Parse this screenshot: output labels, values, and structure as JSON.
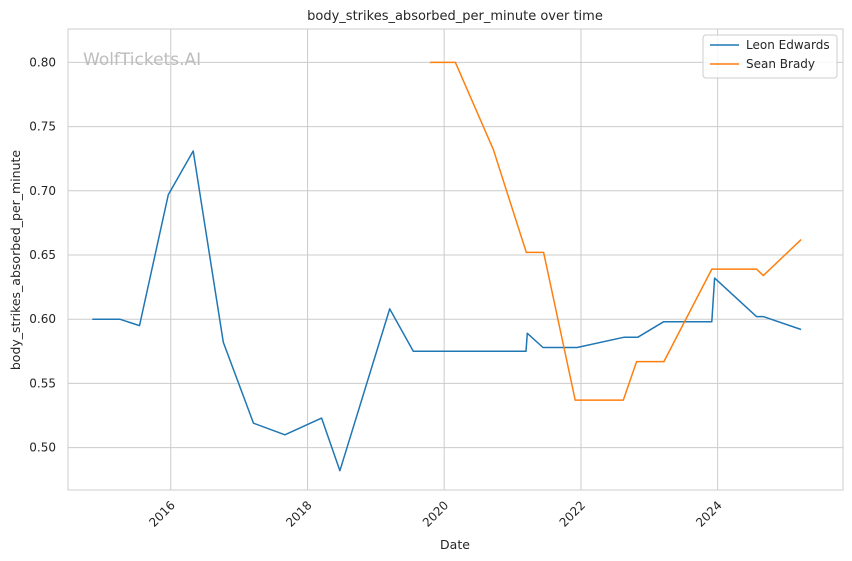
{
  "watermark": "WolfTickets.AI",
  "chart_data": {
    "type": "line",
    "title": "body_strikes_absorbed_per_minute over time",
    "xlabel": "Date",
    "ylabel": "body_strikes_absorbed_per_minute",
    "x_ticks": [
      "2016",
      "2018",
      "2020",
      "2022",
      "2024"
    ],
    "y_ticks": [
      "0.50",
      "0.55",
      "0.60",
      "0.65",
      "0.70",
      "0.75",
      "0.80"
    ],
    "xlim": [
      "2014-07-01",
      "2025-11-01"
    ],
    "ylim": [
      0.467,
      0.826
    ],
    "grid": true,
    "legend_position": "top-right",
    "series": [
      {
        "name": "Leon Edwards",
        "color": "#1f77b4",
        "points": [
          [
            "2014-11-08",
            0.6
          ],
          [
            "2015-04-04",
            0.6
          ],
          [
            "2015-07-18",
            0.595
          ],
          [
            "2015-12-19",
            0.697
          ],
          [
            "2016-04-30",
            0.731
          ],
          [
            "2016-10-08",
            0.582
          ],
          [
            "2017-03-18",
            0.519
          ],
          [
            "2017-09-02",
            0.51
          ],
          [
            "2018-03-17",
            0.523
          ],
          [
            "2018-06-23",
            0.482
          ],
          [
            "2019-03-16",
            0.608
          ],
          [
            "2019-07-20",
            0.575
          ],
          [
            "2021-03-13",
            0.575
          ],
          [
            "2021-03-20",
            0.589
          ],
          [
            "2021-06-12",
            0.578
          ],
          [
            "2021-12-11",
            0.578
          ],
          [
            "2022-08-20",
            0.586
          ],
          [
            "2022-11-01",
            0.586
          ],
          [
            "2023-03-18",
            0.598
          ],
          [
            "2023-12-01",
            0.598
          ],
          [
            "2023-12-16",
            0.632
          ],
          [
            "2024-07-27",
            0.602
          ],
          [
            "2024-09-01",
            0.602
          ],
          [
            "2025-03-22",
            0.592
          ]
        ]
      },
      {
        "name": "Sean Brady",
        "color": "#ff7f0e",
        "points": [
          [
            "2019-10-18",
            0.8
          ],
          [
            "2020-03-01",
            0.8
          ],
          [
            "2020-09-20",
            0.732
          ],
          [
            "2021-03-15",
            0.652
          ],
          [
            "2021-06-15",
            0.652
          ],
          [
            "2021-12-01",
            0.537
          ],
          [
            "2022-08-15",
            0.537
          ],
          [
            "2022-10-25",
            0.567
          ],
          [
            "2023-03-20",
            0.567
          ],
          [
            "2023-12-01",
            0.639
          ],
          [
            "2024-07-27",
            0.639
          ],
          [
            "2024-09-01",
            0.634
          ],
          [
            "2025-03-22",
            0.662
          ]
        ]
      }
    ]
  }
}
